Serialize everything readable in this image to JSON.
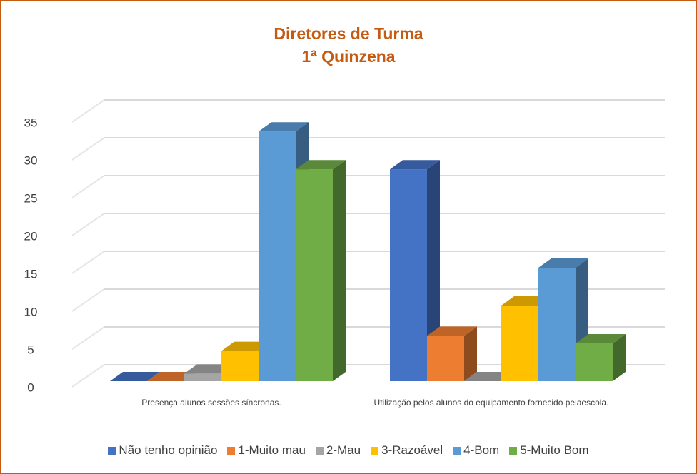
{
  "chart_data": {
    "type": "bar3d",
    "title": "Diretores de Turma",
    "subtitle": "1ª Quinzena",
    "categories": [
      "Presença alunos sessões síncronas.",
      "Utilização pelos alunos do equipamento fornecido pelaescola."
    ],
    "series": [
      {
        "name": "Não tenho opinião",
        "color": "#4472c4",
        "values": [
          0,
          28
        ]
      },
      {
        "name": "1-Muito mau",
        "color": "#ed7d31",
        "values": [
          0,
          6
        ]
      },
      {
        "name": "2-Mau",
        "color": "#a5a5a5",
        "values": [
          1,
          0
        ]
      },
      {
        "name": "3-Razoável",
        "color": "#ffc000",
        "values": [
          4,
          10
        ]
      },
      {
        "name": "4-Bom",
        "color": "#5b9bd5",
        "values": [
          33,
          15
        ]
      },
      {
        "name": "5-Muito Bom",
        "color": "#70ad47",
        "values": [
          28,
          5
        ]
      }
    ],
    "ylim": [
      0,
      35
    ],
    "yticks": [
      0,
      5,
      10,
      15,
      20,
      25,
      30,
      35
    ],
    "grid": true,
    "legend": "bottom"
  }
}
